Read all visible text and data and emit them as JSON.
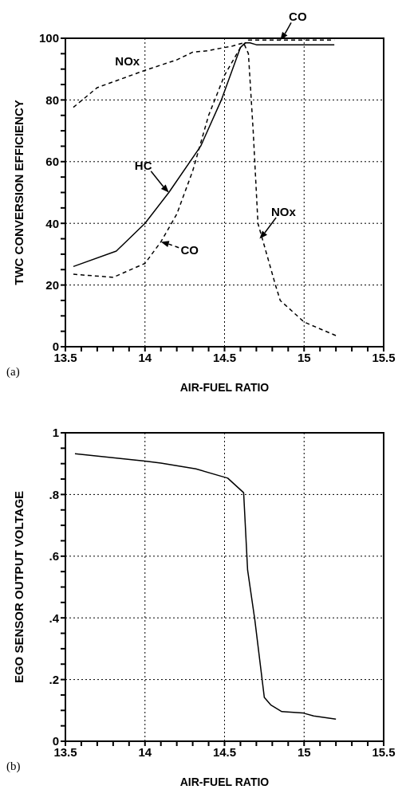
{
  "chart_data": [
    {
      "type": "line",
      "xlabel": "AIR-FUEL RATIO",
      "ylabel": "TWC CONVERSION EFFICIENCY",
      "xlim": [
        13.5,
        15.5
      ],
      "ylim": [
        0,
        100
      ],
      "xticks": [
        13.5,
        {
          "value": 13.6,
          "label": null
        },
        {
          "value": 13.7,
          "label": null
        },
        {
          "value": 13.8,
          "label": null
        },
        {
          "value": 13.9,
          "label": null
        },
        14,
        {
          "value": 14.1,
          "label": null
        },
        {
          "value": 14.2,
          "label": null
        },
        {
          "value": 14.3,
          "label": null
        },
        {
          "value": 14.4,
          "label": null
        },
        14.5,
        {
          "value": 14.6,
          "label": null
        },
        {
          "value": 14.7,
          "label": null
        },
        {
          "value": 14.8,
          "label": null
        },
        {
          "value": 14.9,
          "label": null
        },
        15,
        {
          "value": 15.1,
          "label": null
        },
        {
          "value": 15.2,
          "label": null
        },
        {
          "value": 15.3,
          "label": null
        },
        {
          "value": 15.4,
          "label": null
        },
        15.5
      ],
      "yticks": [
        0,
        {
          "value": 5,
          "label": null
        },
        {
          "value": 10,
          "label": null
        },
        {
          "value": 15,
          "label": null
        },
        20,
        {
          "value": 25,
          "label": null
        },
        {
          "value": 30,
          "label": null
        },
        {
          "value": 35,
          "label": null
        },
        40,
        {
          "value": 45,
          "label": null
        },
        {
          "value": 50,
          "label": null
        },
        {
          "value": 55,
          "label": null
        },
        60,
        {
          "value": 65,
          "label": null
        },
        {
          "value": 70,
          "label": null
        },
        {
          "value": 75,
          "label": null
        },
        80,
        {
          "value": 85,
          "label": null
        },
        {
          "value": 90,
          "label": null
        },
        {
          "value": 95,
          "label": null
        },
        100
      ],
      "grid": true,
      "marker": "none",
      "series": [
        {
          "name": "HC",
          "color": "#000000",
          "line_style": "solid",
          "x": [
            13.55,
            13.82,
            14.0,
            14.15,
            14.35,
            14.48,
            14.6,
            14.63,
            14.66,
            14.7,
            15.19
          ],
          "values": [
            26,
            31,
            40,
            50,
            65,
            80,
            97,
            98.5,
            98.5,
            97.9,
            97.9
          ]
        },
        {
          "name": "CO",
          "color": "#000000",
          "line_style": "dashed",
          "x": [
            13.55,
            13.8,
            14.0,
            14.1,
            14.2,
            14.3,
            14.4,
            14.5,
            14.6,
            14.65,
            15.19
          ],
          "values": [
            23.5,
            22.5,
            27,
            34,
            43,
            57,
            75,
            88,
            97,
            99.4,
            99.4
          ]
        },
        {
          "name": "NOx",
          "color": "#000000",
          "line_style": "dashed",
          "x": [
            13.55,
            13.7,
            14.0,
            14.2,
            14.3,
            14.4,
            14.55,
            14.62,
            14.65,
            14.68,
            14.71,
            14.82,
            14.85,
            15.0,
            15.2
          ],
          "values": [
            77.6,
            84,
            89.6,
            93,
            95.5,
            96,
            97.5,
            98.5,
            95,
            70,
            40,
            20,
            15,
            8,
            3.6
          ]
        }
      ],
      "annotations": [
        "(a)",
        {
          "text": "CO",
          "x": 14.85,
          "y": 99.4
        },
        {
          "text": "NOx",
          "x": 14.72,
          "y": 35
        }
      ]
    },
    {
      "type": "line",
      "xlabel": "AIR-FUEL RATIO",
      "ylabel": "EGO SENSOR OUTPUT VOLTAGE",
      "xlim": [
        13.5,
        15.5
      ],
      "ylim": [
        0,
        1
      ],
      "xticks": [
        13.5,
        {
          "value": 13.6,
          "label": null
        },
        {
          "value": 13.7,
          "label": null
        },
        {
          "value": 13.8,
          "label": null
        },
        {
          "value": 13.9,
          "label": null
        },
        14,
        {
          "value": 14.1,
          "label": null
        },
        {
          "value": 14.2,
          "label": null
        },
        {
          "value": 14.3,
          "label": null
        },
        {
          "value": 14.4,
          "label": null
        },
        14.5,
        {
          "value": 14.6,
          "label": null
        },
        {
          "value": 14.7,
          "label": null
        },
        {
          "value": 14.8,
          "label": null
        },
        {
          "value": 14.9,
          "label": null
        },
        15,
        {
          "value": 15.1,
          "label": null
        },
        {
          "value": 15.2,
          "label": null
        },
        {
          "value": 15.3,
          "label": null
        },
        {
          "value": 15.4,
          "label": null
        },
        15.5
      ],
      "yticks": [
        0,
        {
          "value": 0.05,
          "label": null
        },
        {
          "value": 0.1,
          "label": null
        },
        {
          "value": 0.15,
          "label": null
        },
        {
          "value": 0.2,
          "label": ".2"
        },
        {
          "value": 0.25,
          "label": null
        },
        {
          "value": 0.3,
          "label": null
        },
        {
          "value": 0.35,
          "label": null
        },
        {
          "value": 0.4,
          "label": ".4"
        },
        {
          "value": 0.45,
          "label": null
        },
        {
          "value": 0.5,
          "label": null
        },
        {
          "value": 0.55,
          "label": null
        },
        {
          "value": 0.6,
          "label": ".6"
        },
        {
          "value": 0.65,
          "label": null
        },
        {
          "value": 0.7,
          "label": null
        },
        {
          "value": 0.75,
          "label": null
        },
        {
          "value": 0.8,
          "label": ".8"
        },
        {
          "value": 0.85,
          "label": null
        },
        {
          "value": 0.9,
          "label": null
        },
        {
          "value": 0.95,
          "label": null
        },
        1
      ],
      "grid": true,
      "marker": "none",
      "series": [
        {
          "color": "#000000",
          "line_style": "solid",
          "x": [
            13.56,
            14.0,
            14.1,
            14.32,
            14.52,
            14.62,
            14.645,
            14.69,
            14.75,
            14.79,
            14.86,
            14.99,
            15.06,
            15.2
          ],
          "values": [
            0.932,
            0.908,
            0.902,
            0.883,
            0.853,
            0.806,
            0.555,
            0.395,
            0.142,
            0.118,
            0.096,
            0.092,
            0.082,
            0.072
          ]
        }
      ],
      "annotations": [
        "(b)"
      ]
    }
  ]
}
